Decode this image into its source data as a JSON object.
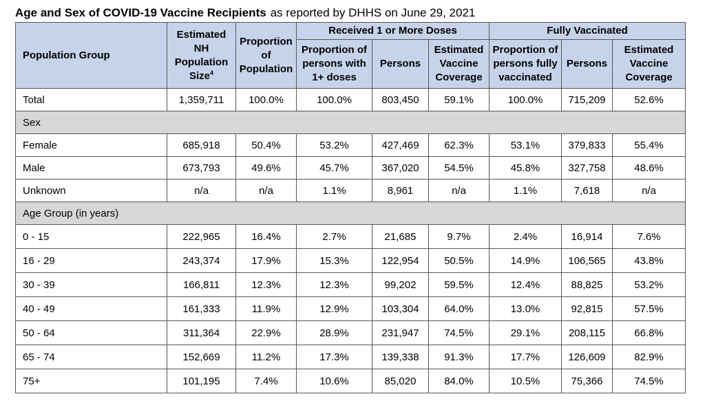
{
  "title": {
    "bold": "Age and Sex of COVID-19 Vaccine Recipients",
    "rest": "as reported by DHHS on June 29, 2021"
  },
  "header": {
    "population_group": "Population Group",
    "estimated_nh_population_size": "Estimated NH Population Size",
    "footnote_mark": "4",
    "proportion_of_population": "Proportion of Population",
    "received_group": "Received 1 or More Doses",
    "received_proportion": "Proportion of persons with 1+ doses",
    "received_persons": "Persons",
    "received_coverage": "Estimated Vaccine Coverage",
    "fully_group": "Fully Vaccinated",
    "fully_proportion": "Proportion of persons fully vaccinated",
    "fully_persons": "Persons",
    "fully_coverage": "Estimated Vaccine Coverage"
  },
  "rows": {
    "total": [
      "Total",
      "1,359,711",
      "100.0%",
      "100.0%",
      "803,450",
      "59.1%",
      "100.0%",
      "715,209",
      "52.6%"
    ],
    "sex_section": "Sex",
    "female": [
      "Female",
      "685,918",
      "50.4%",
      "53.2%",
      "427,469",
      "62.3%",
      "53.1%",
      "379,833",
      "55.4%"
    ],
    "male": [
      "Male",
      "673,793",
      "49.6%",
      "45.7%",
      "367,020",
      "54.5%",
      "45.8%",
      "327,758",
      "48.6%"
    ],
    "unknown": [
      "Unknown",
      "n/a",
      "n/a",
      "1.1%",
      "8,961",
      "n/a",
      "1.1%",
      "7,618",
      "n/a"
    ],
    "age_section": "Age Group (in years)",
    "age_0_15": [
      "0 - 15",
      "222,965",
      "16.4%",
      "2.7%",
      "21,685",
      "9.7%",
      "2.4%",
      "16,914",
      "7.6%"
    ],
    "age_16_29": [
      "16 - 29",
      "243,374",
      "17.9%",
      "15.3%",
      "122,954",
      "50.5%",
      "14.9%",
      "106,565",
      "43.8%"
    ],
    "age_30_39": [
      "30 - 39",
      "166,811",
      "12.3%",
      "12.3%",
      "99,202",
      "59.5%",
      "12.4%",
      "88,825",
      "53.2%"
    ],
    "age_40_49": [
      "40 - 49",
      "161,333",
      "11.9%",
      "12.9%",
      "103,304",
      "64.0%",
      "13.0%",
      "92,815",
      "57.5%"
    ],
    "age_50_64": [
      "50 - 64",
      "311,364",
      "22.9%",
      "28.9%",
      "231,947",
      "74.5%",
      "29.1%",
      "208,115",
      "66.8%"
    ],
    "age_65_74": [
      "65 - 74",
      "152,669",
      "11.2%",
      "17.3%",
      "139,338",
      "91.3%",
      "17.7%",
      "126,609",
      "82.9%"
    ],
    "age_75_plus": [
      "75+",
      "101,195",
      "7.4%",
      "10.6%",
      "85,020",
      "84.0%",
      "10.5%",
      "75,366",
      "74.5%"
    ]
  }
}
